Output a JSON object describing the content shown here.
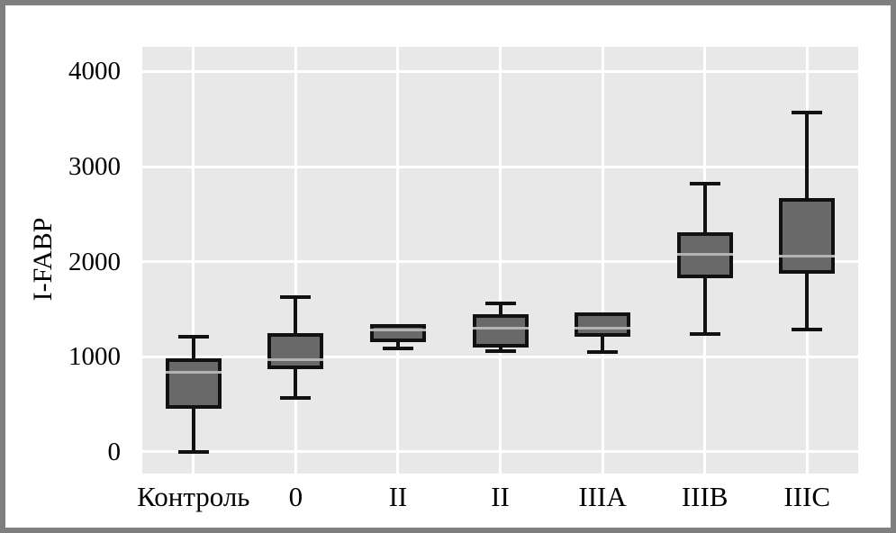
{
  "figure": {
    "frame_color": "#7f7f7f",
    "background_color": "#ffffff",
    "plot_background_color": "#e8e8e8",
    "grid_color": "#ffffff",
    "box_fill_color": "#696969",
    "box_border_color": "#111111",
    "median_line_color": "#b3b3b3",
    "text_color": "#000000"
  },
  "chart_data": {
    "type": "box",
    "title": "",
    "xlabel": "",
    "ylabel": "I-FABP",
    "categories": [
      "Контроль",
      "0",
      "II",
      "II",
      "IIIA",
      "IIIB",
      "IIIC"
    ],
    "yticks": [
      0,
      1000,
      2000,
      3000,
      4000
    ],
    "ylim": [
      -230,
      4260
    ],
    "grid": true,
    "legend": "none",
    "boxes": [
      {
        "label": "Контроль",
        "min": 0,
        "q1": 450,
        "median": 840,
        "q3": 980,
        "max": 1210
      },
      {
        "label": "0",
        "min": 570,
        "q1": 870,
        "median": 970,
        "q3": 1250,
        "max": 1630
      },
      {
        "label": "II",
        "min": 1090,
        "q1": 1150,
        "median": 1280,
        "q3": 1340,
        "max": 1340
      },
      {
        "label": "II",
        "min": 1060,
        "q1": 1100,
        "median": 1300,
        "q3": 1450,
        "max": 1560
      },
      {
        "label": "IIIA",
        "min": 1050,
        "q1": 1210,
        "median": 1300,
        "q3": 1470,
        "max": 1470
      },
      {
        "label": "IIIB",
        "min": 1240,
        "q1": 1830,
        "median": 2080,
        "q3": 2310,
        "max": 2820
      },
      {
        "label": "IIIC",
        "min": 1290,
        "q1": 1870,
        "median": 2060,
        "q3": 2670,
        "max": 3570
      }
    ]
  }
}
